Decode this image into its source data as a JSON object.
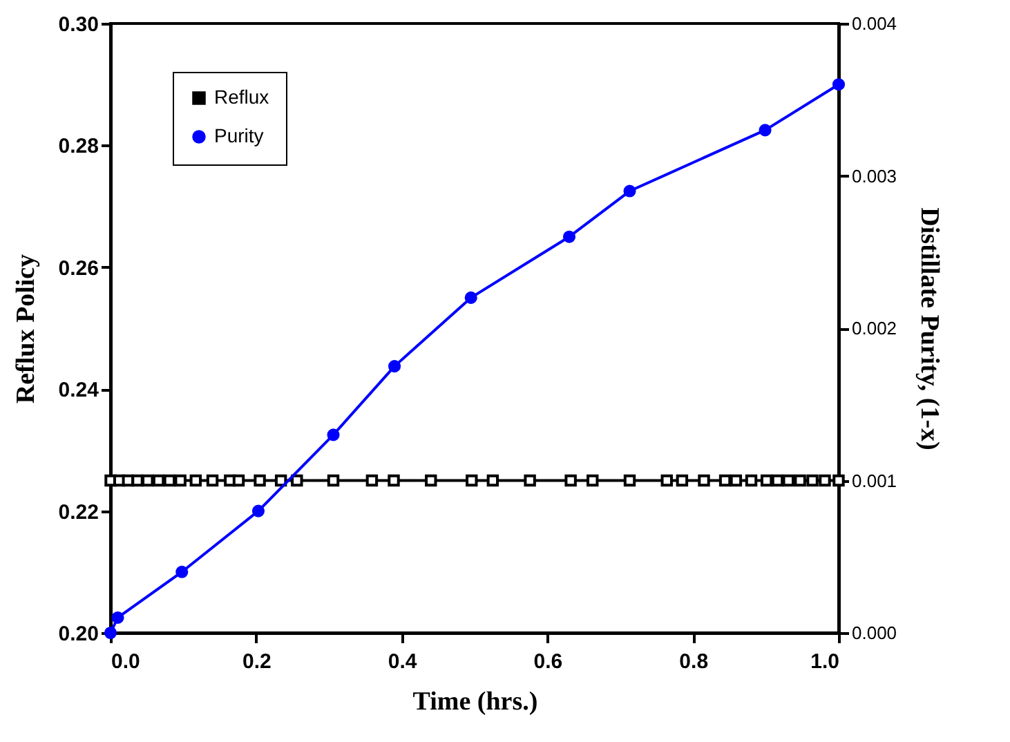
{
  "chart_data": {
    "type": "line",
    "xlabel": "Time  (hrs.)",
    "ylabel": "Reflux  Policy",
    "y2label": "Distillate  Purity,  (1-x)",
    "xlim": [
      0,
      1
    ],
    "xticks": [
      {
        "value": 0,
        "label": "0.0"
      },
      {
        "value": 0.2,
        "label": "0.2"
      },
      {
        "value": 0.4,
        "label": "0.4"
      },
      {
        "value": 0.6,
        "label": "0.6"
      },
      {
        "value": 0.8,
        "label": "0.8"
      },
      {
        "value": 1,
        "label": "1.0"
      }
    ],
    "ylim": [
      0.2,
      0.3
    ],
    "yticks": [
      {
        "value": 0.2,
        "label": "0.20"
      },
      {
        "value": 0.22,
        "label": "0.22"
      },
      {
        "value": 0.24,
        "label": "0.24"
      },
      {
        "value": 0.26,
        "label": "0.26"
      },
      {
        "value": 0.28,
        "label": "0.28"
      },
      {
        "value": 0.3,
        "label": "0.30"
      }
    ],
    "y2lim": [
      0,
      0.004
    ],
    "y2ticks": [
      {
        "value": 0,
        "label": "0.000"
      },
      {
        "value": 0.001,
        "label": "0.001"
      },
      {
        "value": 0.002,
        "label": "0.002"
      },
      {
        "value": 0.003,
        "label": "0.003"
      },
      {
        "value": 0.004,
        "label": "0.004"
      }
    ],
    "legend": "top left",
    "grid": false,
    "series": [
      {
        "name": "Reflux",
        "color": "#000000",
        "marker": "square",
        "x": [
          0,
          0.012,
          0.024,
          0.037,
          0.051,
          0.066,
          0.081,
          0.096,
          0.117,
          0.14,
          0.164,
          0.176,
          0.205,
          0.234,
          0.256,
          0.306,
          0.359,
          0.389,
          0.44,
          0.496,
          0.525,
          0.576,
          0.632,
          0.662,
          0.713,
          0.764,
          0.785,
          0.815,
          0.844,
          0.859,
          0.88,
          0.901,
          0.916,
          0.931,
          0.947,
          0.964,
          0.981,
          1.0
        ],
        "values": [
          0.225,
          0.225,
          0.225,
          0.225,
          0.225,
          0.225,
          0.225,
          0.225,
          0.225,
          0.225,
          0.225,
          0.225,
          0.225,
          0.225,
          0.225,
          0.225,
          0.225,
          0.225,
          0.225,
          0.225,
          0.225,
          0.225,
          0.225,
          0.225,
          0.225,
          0.225,
          0.225,
          0.225,
          0.225,
          0.225,
          0.225,
          0.225,
          0.225,
          0.225,
          0.225,
          0.225,
          0.225,
          0.225
        ]
      },
      {
        "name": "Purity",
        "color": "#0000ff",
        "marker": "circle",
        "axis": "y2",
        "x": [
          0,
          0.01,
          0.098,
          0.203,
          0.306,
          0.39,
          0.495,
          0.63,
          0.713,
          0.899,
          1.0
        ],
        "values": [
          0,
          0.0001,
          0.0004,
          0.0008,
          0.0013,
          0.00175,
          0.0022,
          0.0026,
          0.0029,
          0.0033,
          0.0036
        ]
      }
    ]
  }
}
